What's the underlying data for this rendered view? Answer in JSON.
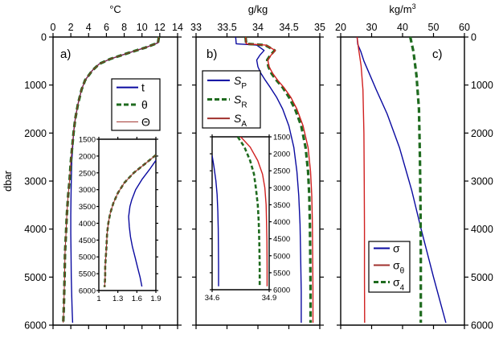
{
  "chart_data": [
    {
      "id": "a",
      "type": "line",
      "panel_label": "a)",
      "xlabel": "°C",
      "ylabel": "dbar",
      "xlim": [
        0,
        14
      ],
      "ylim": [
        0,
        6000
      ],
      "y_inverted": true,
      "xticks": [
        "0",
        "2",
        "4",
        "6",
        "8",
        "10",
        "12",
        "14"
      ],
      "yticks": [
        "0",
        "1000",
        "2000",
        "3000",
        "4000",
        "5000",
        "6000"
      ],
      "legend": {
        "placement": "upper-right",
        "entries": [
          {
            "label": "t",
            "style": "solid",
            "color": "#0a0aa0"
          },
          {
            "label": "θ",
            "style": "dashed",
            "color": "#1f6b1f"
          },
          {
            "label": "Θ",
            "style": "solid-thin",
            "color": "#a0302c"
          }
        ]
      },
      "series": [
        {
          "name": "t",
          "color": "#0a0aa0",
          "style": "solid",
          "x": [
            11.9,
            11.8,
            10.4,
            8.5,
            6.4,
            5.2,
            4.4,
            3.6,
            3.2,
            2.8,
            2.5,
            2.3,
            2.2,
            2.1,
            2.05,
            2.02,
            2.0,
            2.0,
            2.02,
            2.05,
            2.1,
            2.15,
            2.2
          ],
          "y": [
            0,
            120,
            220,
            330,
            460,
            560,
            700,
            900,
            1100,
            1400,
            1700,
            2000,
            2300,
            2600,
            3000,
            3300,
            3700,
            4100,
            4500,
            5000,
            5400,
            5700,
            5950
          ]
        },
        {
          "name": "θ",
          "color": "#1f6b1f",
          "style": "dashed",
          "x": [
            11.9,
            11.8,
            10.4,
            8.5,
            6.4,
            5.2,
            4.4,
            3.6,
            3.2,
            2.8,
            2.5,
            2.3,
            2.15,
            2.0,
            1.85,
            1.7,
            1.55,
            1.45,
            1.35,
            1.3,
            1.25,
            1.2,
            1.15
          ],
          "y": [
            0,
            120,
            220,
            330,
            460,
            560,
            700,
            900,
            1100,
            1400,
            1700,
            2000,
            2300,
            2600,
            3000,
            3300,
            3700,
            4100,
            4500,
            5000,
            5400,
            5700,
            5950
          ]
        },
        {
          "name": "Θ",
          "color": "#a0302c",
          "style": "solid-thin",
          "x": [
            11.9,
            11.8,
            10.4,
            8.5,
            6.4,
            5.2,
            4.4,
            3.6,
            3.2,
            2.8,
            2.5,
            2.3,
            2.15,
            2.0,
            1.85,
            1.7,
            1.55,
            1.45,
            1.35,
            1.3,
            1.25,
            1.2,
            1.15
          ],
          "y": [
            0,
            120,
            220,
            330,
            460,
            560,
            700,
            900,
            1100,
            1400,
            1700,
            2000,
            2300,
            2600,
            3000,
            3300,
            3700,
            4100,
            4500,
            5000,
            5400,
            5700,
            5950
          ]
        }
      ],
      "inset": {
        "xlim": [
          1,
          1.9
        ],
        "ylim": [
          1500,
          6000
        ],
        "y_inverted": true,
        "xticks": [
          "1",
          "1.3",
          "1.6",
          "1.9"
        ],
        "yticks": [
          "1500",
          "2000",
          "2500",
          "3000",
          "3500",
          "4000",
          "4500",
          "5000",
          "5500",
          "6000"
        ],
        "series": [
          {
            "name": "t",
            "color": "#0a0aa0",
            "style": "solid",
            "x": [
              1.9,
              1.8,
              1.68,
              1.58,
              1.52,
              1.49,
              1.47,
              1.48,
              1.5,
              1.53,
              1.57,
              1.61,
              1.65,
              1.68
            ],
            "y": [
              2130,
              2400,
              2700,
              3000,
              3300,
              3500,
              3800,
              4100,
              4400,
              4700,
              5000,
              5300,
              5600,
              5880
            ]
          },
          {
            "name": "θ",
            "color": "#1f6b1f",
            "style": "dashed",
            "x": [
              1.9,
              1.75,
              1.55,
              1.4,
              1.3,
              1.23,
              1.18,
              1.15,
              1.13,
              1.12,
              1.11,
              1.1,
              1.1,
              1.09
            ],
            "y": [
              1970,
              2200,
              2500,
              2800,
              3100,
              3400,
              3700,
              4000,
              4300,
              4700,
              5000,
              5300,
              5600,
              5900
            ]
          },
          {
            "name": "Θ",
            "color": "#a0302c",
            "style": "solid-thin",
            "x": [
              1.9,
              1.75,
              1.55,
              1.4,
              1.3,
              1.23,
              1.18,
              1.15,
              1.13,
              1.12,
              1.11,
              1.1,
              1.1,
              1.09
            ],
            "y": [
              1970,
              2200,
              2500,
              2800,
              3100,
              3400,
              3700,
              4000,
              4300,
              4700,
              5000,
              5300,
              5600,
              5900
            ]
          }
        ]
      }
    },
    {
      "id": "b",
      "type": "line",
      "panel_label": "b)",
      "xlabel": "g/kg",
      "xlim": [
        33,
        35
      ],
      "ylim": [
        0,
        6000
      ],
      "y_inverted": true,
      "xticks": [
        "33",
        "33.5",
        "34",
        "34.5",
        "35"
      ],
      "legend": {
        "placement": "upper-left",
        "entries": [
          {
            "label": "S",
            "sub": "P",
            "style": "solid",
            "color": "#0a0aa0"
          },
          {
            "label": "S",
            "sub": "R",
            "style": "dashed",
            "color": "#1f6b1f"
          },
          {
            "label": "S",
            "sub": "A",
            "style": "solid",
            "color": "#a0302c"
          }
        ]
      },
      "series": [
        {
          "name": "SP",
          "color": "#0a0aa0",
          "style": "solid",
          "x": [
            33.64,
            33.65,
            33.98,
            34.1,
            34.03,
            33.98,
            34.0,
            34.05,
            34.12,
            34.2,
            34.3,
            34.4,
            34.5,
            34.58,
            34.63,
            34.66,
            34.68,
            34.69,
            34.7,
            34.7
          ],
          "y": [
            0,
            140,
            170,
            280,
            380,
            480,
            620,
            760,
            900,
            1050,
            1250,
            1500,
            1850,
            2300,
            2800,
            3300,
            3900,
            4500,
            5300,
            5950
          ]
        },
        {
          "name": "SR",
          "color": "#1f6b1f",
          "style": "dashed",
          "x": [
            33.8,
            33.81,
            34.12,
            34.27,
            34.2,
            34.15,
            34.17,
            34.22,
            34.3,
            34.4,
            34.5,
            34.6,
            34.7,
            34.77,
            34.81,
            34.83,
            34.84,
            34.845,
            34.85,
            34.85
          ],
          "y": [
            0,
            140,
            170,
            280,
            380,
            480,
            620,
            760,
            900,
            1050,
            1250,
            1500,
            1850,
            2300,
            2800,
            3300,
            3900,
            4500,
            5300,
            5950
          ]
        },
        {
          "name": "SA",
          "color": "#d02020",
          "style": "solid",
          "x": [
            33.8,
            33.81,
            34.13,
            34.28,
            34.21,
            34.16,
            34.18,
            34.24,
            34.32,
            34.42,
            34.53,
            34.63,
            34.73,
            34.81,
            34.85,
            34.87,
            34.88,
            34.885,
            34.89,
            34.89
          ],
          "y": [
            0,
            140,
            170,
            280,
            380,
            480,
            620,
            760,
            900,
            1050,
            1250,
            1500,
            1850,
            2300,
            2800,
            3300,
            3900,
            4500,
            5300,
            5950
          ]
        }
      ],
      "inset": {
        "xlim": [
          34.6,
          34.9
        ],
        "ylim": [
          1500,
          6000
        ],
        "y_inverted": true,
        "xticks": [
          "34.6",
          "34.9"
        ],
        "yticks": [
          "1500",
          "2000",
          "2500",
          "3000",
          "3500",
          "4000",
          "4500",
          "5000",
          "5500",
          "6000"
        ],
        "series": [
          {
            "name": "SP",
            "color": "#0a0aa0",
            "style": "solid",
            "x": [
              34.6,
              34.61,
              34.62,
              34.626,
              34.63,
              34.632,
              34.633,
              34.634,
              34.634
            ],
            "y": [
              2050,
              2400,
              2800,
              3200,
              3700,
              4200,
              4700,
              5300,
              5900
            ]
          },
          {
            "name": "SR",
            "color": "#1f6b1f",
            "style": "dashed",
            "x": [
              34.735,
              34.77,
              34.8,
              34.82,
              34.83,
              34.84,
              34.845,
              34.848,
              34.85,
              34.85
            ],
            "y": [
              1500,
              1800,
              2200,
              2600,
              3000,
              3500,
              4000,
              4600,
              5300,
              5900
            ]
          },
          {
            "name": "SA",
            "color": "#d02020",
            "style": "solid",
            "x": [
              34.75,
              34.8,
              34.84,
              34.865,
              34.877,
              34.884,
              34.886,
              34.888,
              34.889,
              34.889
            ],
            "y": [
              1500,
              1800,
              2200,
              2600,
              3000,
              3500,
              4000,
              4600,
              5300,
              5900
            ]
          }
        ]
      }
    },
    {
      "id": "c",
      "type": "line",
      "panel_label": "c)",
      "xlabel": "kg/m³",
      "xlim": [
        20,
        60
      ],
      "ylim": [
        0,
        6000
      ],
      "y_inverted": true,
      "y_axis_side": "right",
      "xticks": [
        "20",
        "30",
        "40",
        "50",
        "60"
      ],
      "yticks": [
        "0",
        "1000",
        "2000",
        "3000",
        "4000",
        "5000",
        "6000"
      ],
      "legend": {
        "placement": "lower-left",
        "entries": [
          {
            "label": "σ",
            "sub": "",
            "style": "solid",
            "color": "#0a0aa0"
          },
          {
            "label": "σ",
            "sub": "θ",
            "style": "solid",
            "color": "#a0302c"
          },
          {
            "label": "σ",
            "sub": "4",
            "style": "dashed",
            "color": "#1f6b1f"
          }
        ]
      },
      "series": [
        {
          "name": "σ",
          "color": "#0a0aa0",
          "style": "solid",
          "x": [
            25.3,
            25.5,
            26.5,
            27.5,
            29.5,
            31.5,
            35,
            39,
            43,
            46,
            50,
            54
          ],
          "y": [
            0,
            150,
            300,
            500,
            800,
            1100,
            1600,
            2300,
            3200,
            4000,
            5000,
            5950
          ]
        },
        {
          "name": "σθ",
          "color": "#d02020",
          "style": "solid",
          "x": [
            25.3,
            25.8,
            26.6,
            27.2,
            27.5,
            27.6,
            27.7,
            27.7,
            27.75
          ],
          "y": [
            0,
            250,
            600,
            1100,
            2000,
            3000,
            4000,
            5000,
            5950
          ]
        },
        {
          "name": "σ4",
          "color": "#1f6b1f",
          "style": "dashed",
          "x": [
            42.5,
            43.5,
            44.5,
            45.3,
            45.6,
            45.8,
            45.9,
            45.9
          ],
          "y": [
            0,
            300,
            800,
            1500,
            2500,
            3500,
            4500,
            5950
          ]
        }
      ]
    }
  ]
}
